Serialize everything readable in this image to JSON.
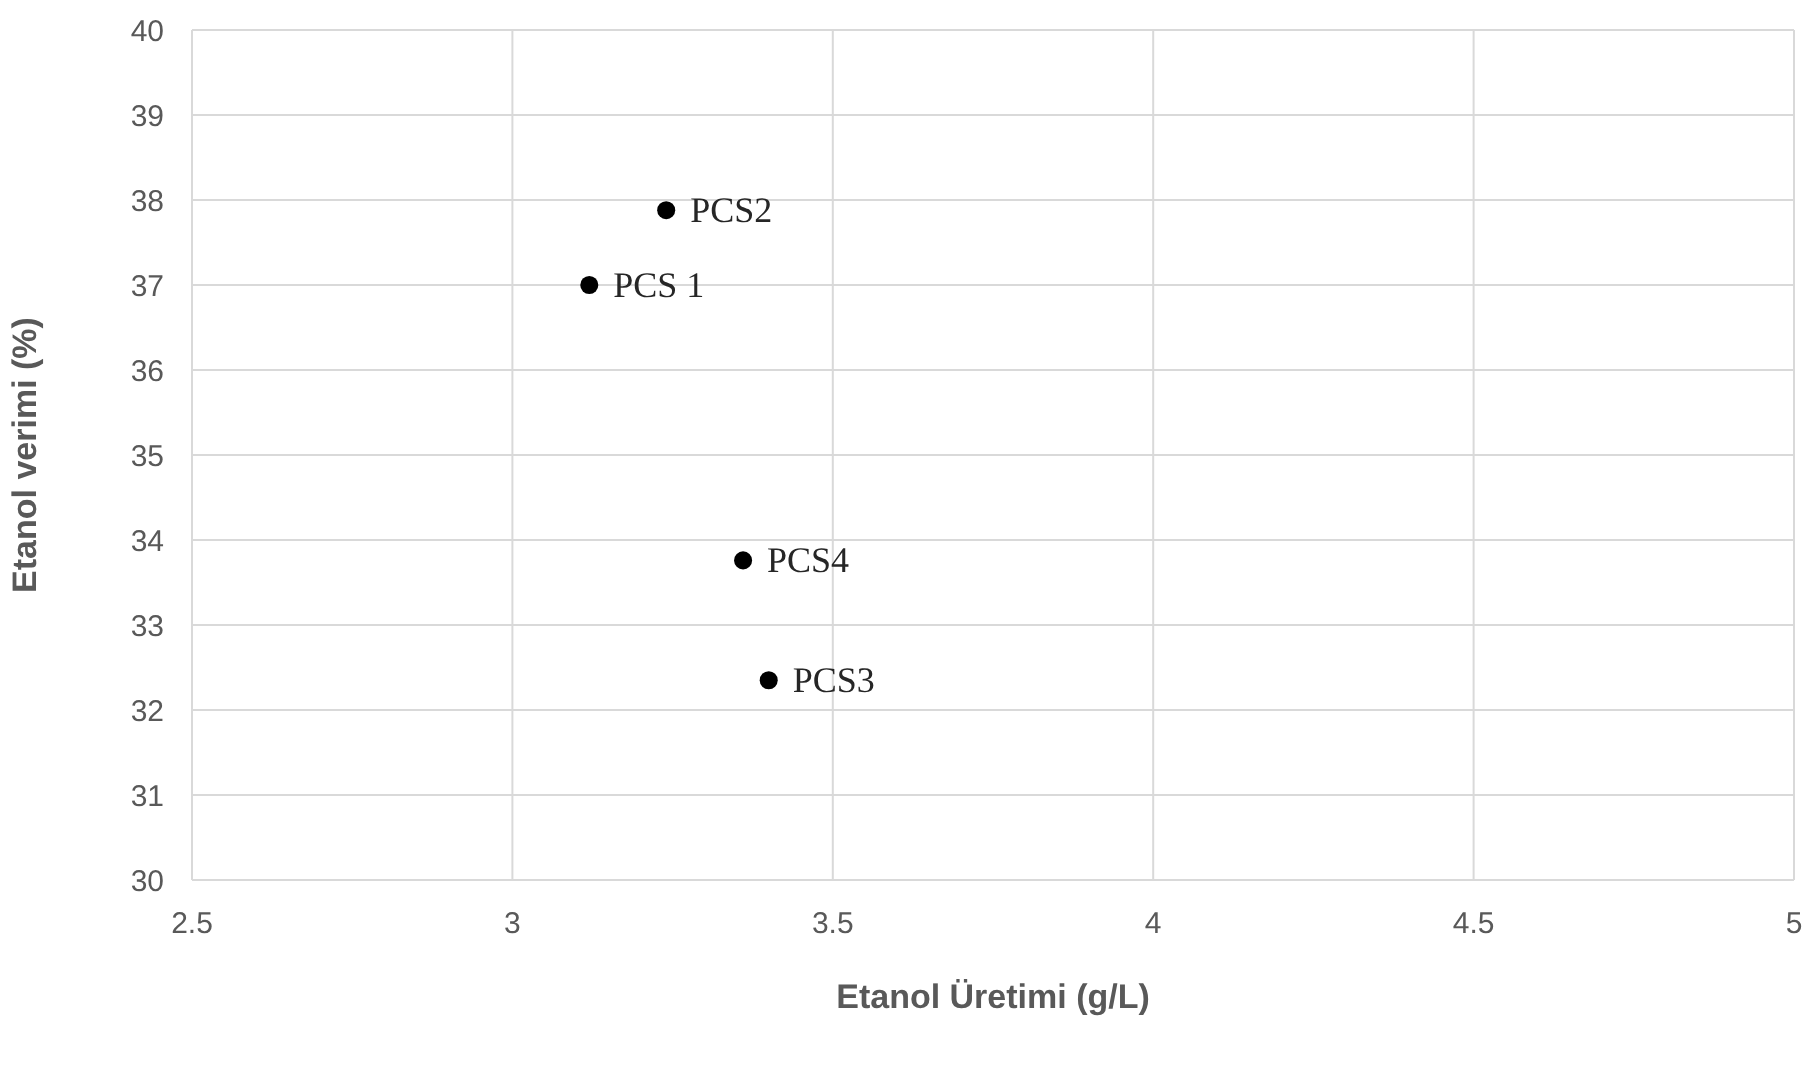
{
  "chart_data": {
    "type": "scatter",
    "xlabel": "Etanol Üretimi (g/L)",
    "ylabel": "Etanol verimi (%)",
    "x": [
      3.12,
      3.24,
      3.4,
      3.36
    ],
    "series": [
      {
        "color": "#000000",
        "values": [
          37.0,
          37.88,
          32.35,
          33.76
        ]
      }
    ],
    "xlim": [
      2.5,
      5
    ],
    "xticks": [
      2.5,
      3,
      3.5,
      4,
      4.5,
      5
    ],
    "ylim": [
      30,
      40
    ],
    "yticks": [
      30,
      31,
      32,
      33,
      34,
      35,
      36,
      37,
      38,
      39,
      40
    ],
    "grid": true,
    "marker": "circle",
    "legend": false,
    "annotations": [
      {
        "text": "PCS 1",
        "x": 3.12,
        "y": 37.0
      },
      {
        "text": "PCS2",
        "x": 3.24,
        "y": 37.88
      },
      {
        "text": "PCS3",
        "x": 3.4,
        "y": 32.35
      },
      {
        "text": "PCS4",
        "x": 3.36,
        "y": 33.76
      }
    ]
  }
}
